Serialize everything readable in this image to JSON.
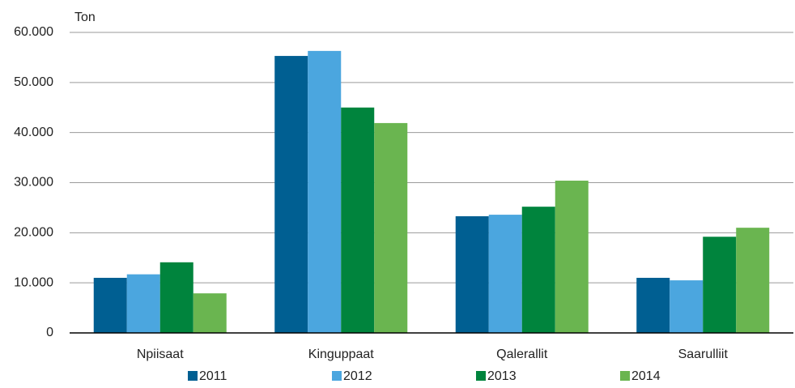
{
  "chart_data": {
    "type": "bar",
    "ylabel": "Ton",
    "categories": [
      "Npiisaat",
      "Kinguppaat",
      "Qalerallit",
      "Saarulliit"
    ],
    "series": [
      {
        "name": "2011",
        "color": "#005f92",
        "values": [
          11000,
          55300,
          23300,
          11000
        ]
      },
      {
        "name": "2012",
        "color": "#4ba6df",
        "values": [
          11700,
          56300,
          23600,
          10500
        ]
      },
      {
        "name": "2013",
        "color": "#00843d",
        "values": [
          14100,
          45000,
          25200,
          19200
        ]
      },
      {
        "name": "2014",
        "color": "#6ab550",
        "values": [
          7900,
          41900,
          30400,
          21000
        ]
      }
    ],
    "ylim": [
      0,
      60000
    ],
    "yticks": [
      0,
      {
        "value": 10000,
        "label": "10.000"
      },
      {
        "value": 20000,
        "label": "20.000"
      },
      {
        "value": 30000,
        "label": "30.000"
      },
      {
        "value": 40000,
        "label": "40.000"
      },
      {
        "value": 50000,
        "label": "50.000"
      },
      {
        "value": 60000,
        "label": "60.000"
      }
    ],
    "grid": true
  }
}
